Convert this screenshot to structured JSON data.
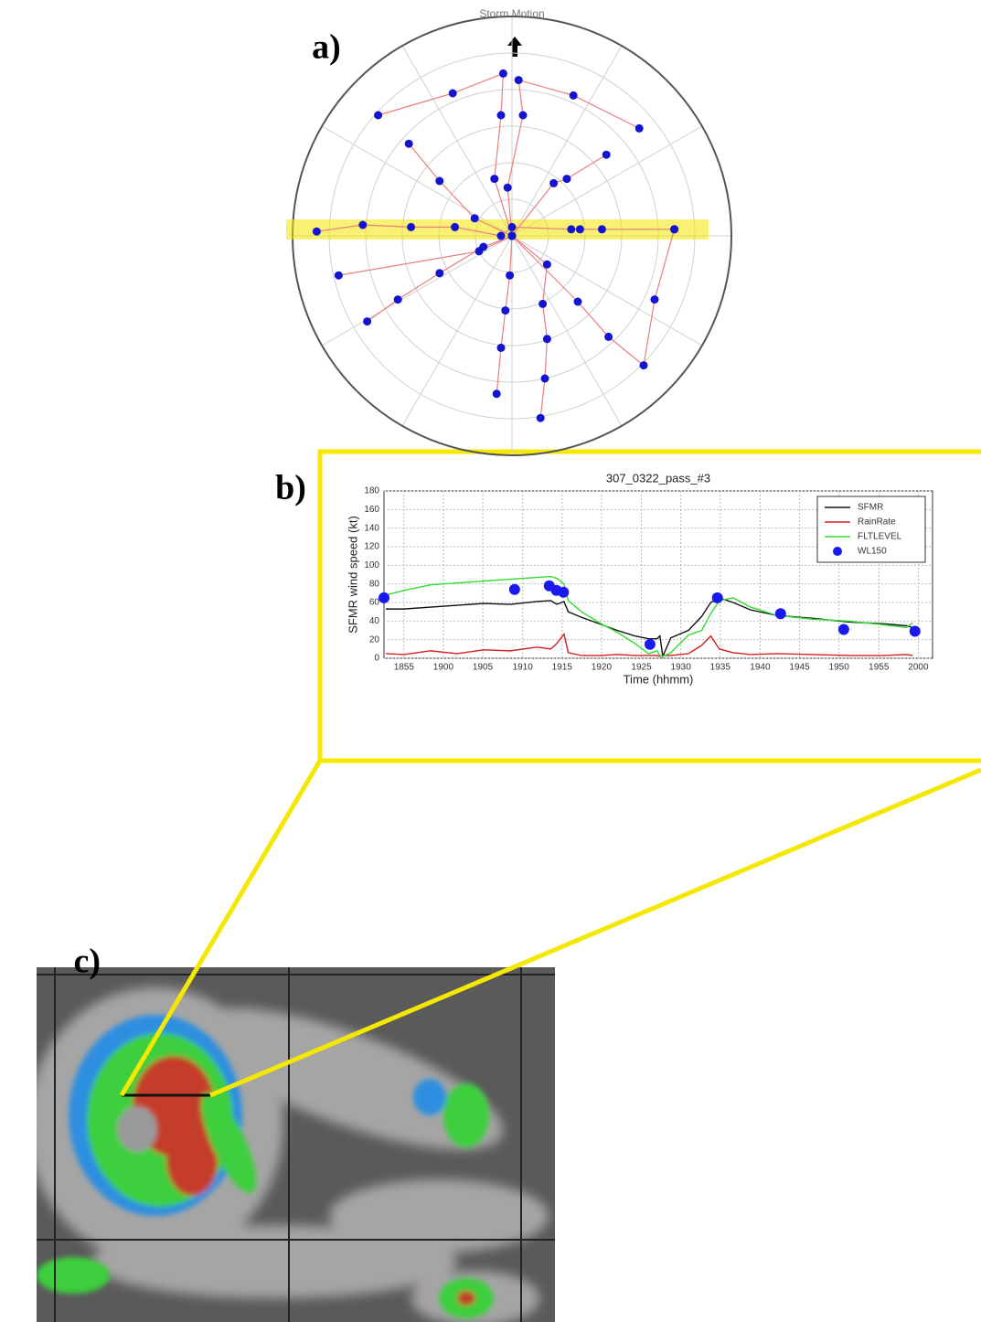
{
  "chart_data": [
    {
      "type": "polar",
      "title": "Storm Motion",
      "panel_label": "a)",
      "xlim": [
        -1,
        1
      ],
      "ylim": [
        -1,
        1
      ],
      "line_color": "#e88080",
      "marker_color": "#1414d0",
      "series": [
        {
          "x": [
            0,
            -0.08,
            -0.05,
            -0.04,
            -0.27,
            -0.61
          ],
          "y": [
            0,
            0.26,
            0.55,
            0.74,
            0.65,
            0.55
          ]
        },
        {
          "x": [
            0,
            -0.02,
            0.05,
            0.03,
            0.28,
            0.58
          ],
          "y": [
            0,
            0.22,
            0.55,
            0.71,
            0.64,
            0.49
          ]
        },
        {
          "x": [
            0,
            -0.17,
            -0.33,
            -0.47
          ],
          "y": [
            0,
            0.08,
            0.25,
            0.42
          ]
        },
        {
          "x": [
            0,
            0.19,
            0.25,
            0.43
          ],
          "y": [
            0,
            0.24,
            0.26,
            0.37
          ]
        },
        {
          "x": [
            -0.89,
            -0.68,
            -0.46,
            -0.26,
            -0.05,
            0,
            0.27,
            0.31,
            0.41,
            0.74
          ],
          "y": [
            0.02,
            0.05,
            0.04,
            0.04,
            0,
            0.04,
            0.03,
            0.03,
            0.03,
            0.03
          ]
        },
        {
          "x": [
            0,
            -0.13,
            -0.33,
            -0.52,
            -0.66
          ],
          "y": [
            0,
            -0.05,
            -0.17,
            -0.29,
            -0.39
          ]
        },
        {
          "x": [
            0,
            -0.15,
            -0.79
          ],
          "y": [
            0,
            -0.07,
            -0.18
          ]
        },
        {
          "x": [
            0,
            -0.01,
            -0.03,
            -0.05,
            -0.07
          ],
          "y": [
            0,
            -0.18,
            -0.34,
            -0.51,
            -0.72
          ]
        },
        {
          "x": [
            0,
            0.16,
            0.14,
            0.16,
            0.15,
            0.13
          ],
          "y": [
            0,
            -0.13,
            -0.31,
            -0.47,
            -0.65,
            -0.83
          ]
        },
        {
          "x": [
            0,
            0.3,
            0.44,
            0.6,
            0.65,
            0.74
          ],
          "y": [
            0,
            -0.3,
            -0.46,
            -0.59,
            -0.29,
            0.03
          ]
        }
      ]
    },
    {
      "type": "line",
      "title": "307_0322_pass_#3",
      "panel_label": "b)",
      "x_label": "Time (hhmm)",
      "y_label": "SFMR wind speed (kt)",
      "xlim": [
        18.875,
        20.03
      ],
      "ylim": [
        0,
        180
      ],
      "grid": true,
      "legend": "top-right",
      "xticks": [
        {
          "value": 18.917,
          "label": "1855"
        },
        {
          "value": 19,
          "label": "1900"
        },
        {
          "value": 19.083,
          "label": "1905"
        },
        {
          "value": 19.167,
          "label": "1910"
        },
        {
          "value": 19.25,
          "label": "1915"
        },
        {
          "value": 19.333,
          "label": "1920"
        },
        {
          "value": 19.417,
          "label": "1925"
        },
        {
          "value": 19.5,
          "label": "1930"
        },
        {
          "value": 19.583,
          "label": "1935"
        },
        {
          "value": 19.667,
          "label": "1940"
        },
        {
          "value": 19.75,
          "label": "1945"
        },
        {
          "value": 19.833,
          "label": "1950"
        },
        {
          "value": 19.917,
          "label": "1955"
        },
        {
          "value": 20,
          "label": "2000"
        }
      ],
      "yticks": [
        0,
        20,
        40,
        60,
        80,
        100,
        120,
        140,
        160,
        180
      ],
      "series": [
        {
          "name": "SFMR",
          "color": "#111111",
          "style": "line",
          "x": [
            18.879,
            18.917,
            18.973,
            19.029,
            19.085,
            19.141,
            19.197,
            19.226,
            19.239,
            19.254,
            19.263,
            19.291,
            19.329,
            19.366,
            19.403,
            19.432,
            19.45,
            19.456,
            19.462,
            19.479,
            19.516,
            19.544,
            19.563,
            19.581,
            19.61,
            19.647,
            19.703,
            19.778,
            19.853,
            19.928,
            19.975,
            19.988
          ],
          "values": [
            53,
            53,
            55,
            57,
            59,
            58,
            61,
            62,
            58,
            61,
            50,
            44,
            37,
            30,
            24,
            21,
            21,
            24,
            2,
            22,
            30,
            45,
            60,
            65,
            60,
            52,
            46,
            43,
            39,
            37,
            35,
            33
          ]
        },
        {
          "name": "RainRate",
          "color": "#d42020",
          "style": "line",
          "x": [
            18.879,
            18.917,
            18.973,
            19.029,
            19.085,
            19.141,
            19.197,
            19.226,
            19.239,
            19.254,
            19.263,
            19.291,
            19.329,
            19.366,
            19.403,
            19.432,
            19.45,
            19.456,
            19.462,
            19.479,
            19.516,
            19.544,
            19.563,
            19.581,
            19.61,
            19.647,
            19.703,
            19.778,
            19.853,
            19.928,
            19.975,
            19.988
          ],
          "values": [
            5,
            4,
            8,
            5,
            9,
            8,
            12,
            10,
            16,
            26,
            6,
            3,
            3,
            4,
            3,
            3,
            3,
            2,
            3,
            3,
            5,
            14,
            24,
            10,
            6,
            4,
            5,
            4,
            3,
            3,
            4,
            3
          ]
        },
        {
          "name": "FLTLEVEL",
          "color": "#33dd33",
          "style": "line",
          "x": [
            18.879,
            18.917,
            18.973,
            19.029,
            19.085,
            19.141,
            19.197,
            19.226,
            19.239,
            19.254,
            19.263,
            19.291,
            19.329,
            19.366,
            19.403,
            19.432,
            19.45,
            19.456,
            19.462,
            19.479,
            19.516,
            19.544,
            19.563,
            19.581,
            19.61,
            19.647,
            19.703,
            19.778,
            19.853,
            19.928,
            19.975,
            19.988
          ],
          "values": [
            68,
            73,
            79,
            81,
            83,
            85,
            87,
            88,
            86,
            80,
            62,
            50,
            38,
            28,
            16,
            5,
            8,
            3,
            2,
            6,
            25,
            30,
            48,
            62,
            65,
            55,
            46,
            42,
            40,
            36,
            33,
            38
          ]
        },
        {
          "name": "WL150",
          "color": "#1a1aee",
          "style": "markers",
          "x": [
            18.875,
            19.15,
            19.223,
            19.238,
            19.253,
            19.435,
            19.577,
            19.71,
            19.843,
            19.993
          ],
          "values": [
            65,
            74,
            78,
            73,
            71,
            15,
            65,
            48,
            31,
            29
          ]
        }
      ]
    }
  ],
  "image": {
    "panel_label": "c)"
  }
}
